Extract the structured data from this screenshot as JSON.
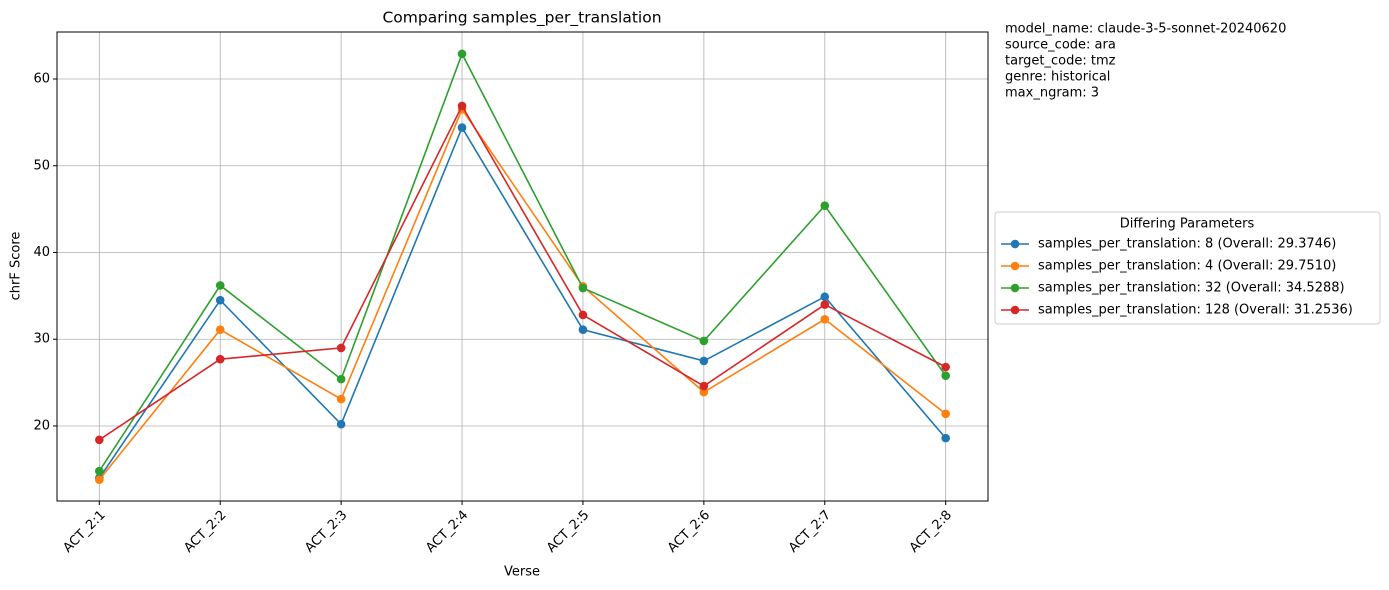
{
  "chart_data": {
    "type": "line",
    "title": "Comparing samples_per_translation",
    "x_label": "Verse",
    "y_label": "chrF Score",
    "categories": [
      "ACT_2:1",
      "ACT_2:2",
      "ACT_2:3",
      "ACT_2:4",
      "ACT_2:5",
      "ACT_2:6",
      "ACT_2:7",
      "ACT_2:8"
    ],
    "series": [
      {
        "name": "samples_per_translation: 8 (Overall: 29.3746)",
        "color": "#1f77b4",
        "values": [
          14.0,
          34.5,
          20.2,
          54.4,
          31.1,
          27.5,
          34.9,
          18.6
        ]
      },
      {
        "name": "samples_per_translation: 4 (Overall: 29.7510)",
        "color": "#ff7f0e",
        "values": [
          13.8,
          31.1,
          23.1,
          56.5,
          36.1,
          23.9,
          32.3,
          21.4
        ]
      },
      {
        "name": "samples_per_translation: 32 (Overall: 34.5288)",
        "color": "#2ca02c",
        "values": [
          14.8,
          36.2,
          25.4,
          62.9,
          35.9,
          29.8,
          45.4,
          25.8
        ]
      },
      {
        "name": "samples_per_translation: 128 (Overall: 31.2536)",
        "color": "#d62728",
        "values": [
          18.4,
          27.7,
          29.0,
          56.9,
          32.8,
          24.6,
          34.0,
          26.8
        ]
      }
    ],
    "ylim": [
      11.35,
      65.42
    ],
    "yticks": [
      20,
      30,
      40,
      50,
      60
    ],
    "grid": true,
    "legend_title": "Differing Parameters",
    "legend_position": "right",
    "annotations": [
      "model_name: claude-3-5-sonnet-20240620",
      "source_code: ara",
      "target_code: tmz",
      "genre: historical",
      "max_ngram: 3"
    ]
  }
}
